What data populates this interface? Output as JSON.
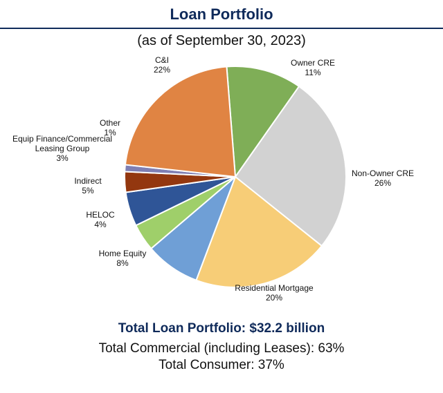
{
  "chart_data": {
    "type": "pie",
    "title": "Loan Portfolio",
    "subtitle": "(as of September 30, 2023)",
    "slices": [
      {
        "label": "Owner CRE",
        "value": 11,
        "value_label": "11%",
        "color": "#7fae57"
      },
      {
        "label": "Non-Owner CRE",
        "value": 26,
        "value_label": "26%",
        "color": "#d2d2d2"
      },
      {
        "label": "Residential Mortgage",
        "value": 20,
        "value_label": "20%",
        "color": "#f7cd77"
      },
      {
        "label": "Home Equity",
        "value": 8,
        "value_label": "8%",
        "color": "#6f9fd6"
      },
      {
        "label": "HELOC",
        "value": 4,
        "value_label": "4%",
        "color": "#9fcf6a"
      },
      {
        "label": "Indirect",
        "value": 5,
        "value_label": "5%",
        "color": "#2f5597"
      },
      {
        "label": "Equip Finance/Commercial Leasing Group",
        "value": 3,
        "value_label": "3%",
        "color": "#93370f"
      },
      {
        "label": "Other",
        "value": 1,
        "value_label": "1%",
        "color": "#7f7fb3"
      },
      {
        "label": "C&I",
        "value": 22,
        "value_label": "22%",
        "color": "#e08443"
      }
    ]
  },
  "summary": {
    "total": "Total Loan Portfolio: $32.2 billion",
    "commercial": "Total Commercial (including Leases): 63%",
    "consumer": "Total Consumer: 37%"
  }
}
